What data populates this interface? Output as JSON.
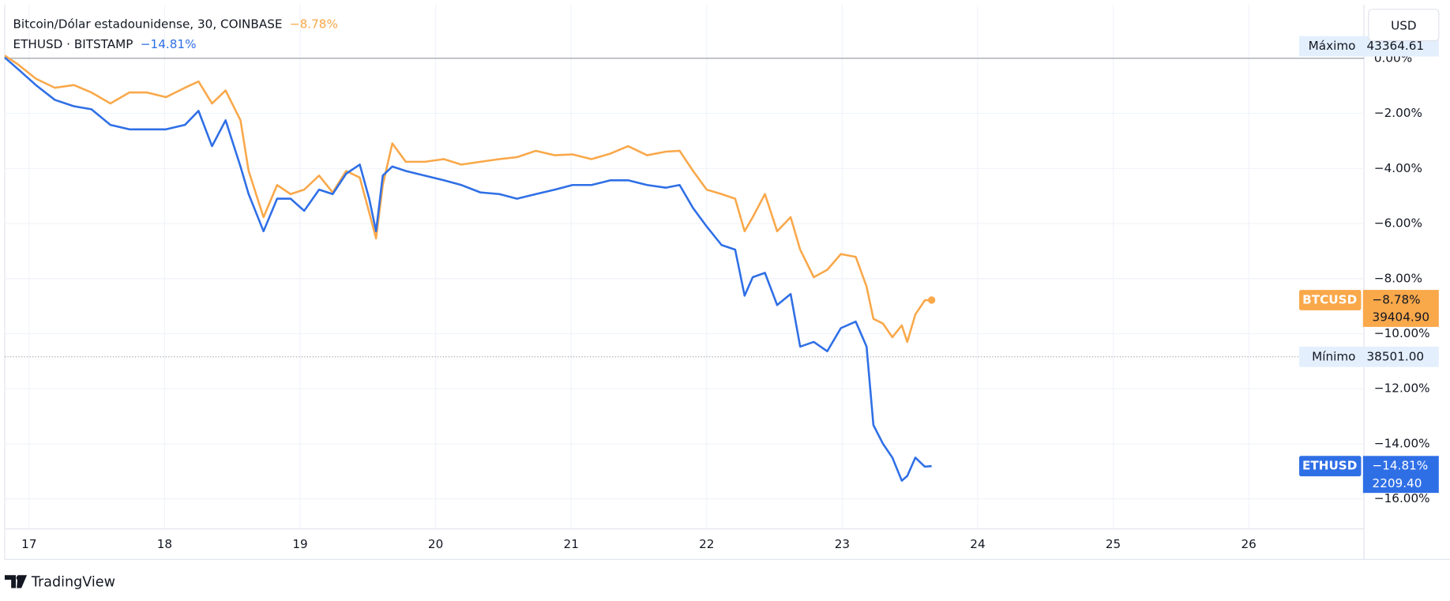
{
  "chart_data": {
    "type": "line",
    "x": [
      16.82,
      16.92,
      17.05,
      17.19,
      17.33,
      17.46,
      17.6,
      17.74,
      17.87,
      18.01,
      18.15,
      18.25,
      18.35,
      18.45,
      18.56,
      18.62,
      18.73,
      18.83,
      18.93,
      19.03,
      19.14,
      19.24,
      19.34,
      19.44,
      19.51,
      19.56,
      19.61,
      19.68,
      19.78,
      19.92,
      20.06,
      20.19,
      20.33,
      20.47,
      20.6,
      20.74,
      20.88,
      21.01,
      21.15,
      21.29,
      21.42,
      21.56,
      21.7,
      21.8,
      21.9,
      22.0,
      22.11,
      22.21,
      22.28,
      22.34,
      22.43,
      22.52,
      22.62,
      22.69,
      22.79,
      22.89,
      22.99,
      23.1,
      23.18,
      23.23,
      23.3,
      23.37,
      23.44,
      23.48,
      23.54,
      23.61,
      23.66
    ],
    "series": [
      {
        "name": "BTCUSD",
        "description": "Bitcoin/Dólar estadounidense, 30, COINBASE",
        "change_label": "−8.78%",
        "price_label": "39404.90",
        "color": "#f9a84a",
        "marker_last": true,
        "values": [
          0.1,
          -0.23,
          -0.74,
          -1.07,
          -0.97,
          -1.24,
          -1.64,
          -1.24,
          -1.24,
          -1.41,
          -1.07,
          -0.84,
          -1.64,
          -1.17,
          -2.25,
          -4.09,
          -5.77,
          -4.6,
          -4.93,
          -4.77,
          -4.26,
          -4.87,
          -4.09,
          -4.33,
          -5.6,
          -6.54,
          -4.6,
          -3.09,
          -3.76,
          -3.76,
          -3.66,
          -3.86,
          -3.76,
          -3.66,
          -3.59,
          -3.36,
          -3.52,
          -3.49,
          -3.66,
          -3.46,
          -3.19,
          -3.52,
          -3.39,
          -3.36,
          -4.09,
          -4.77,
          -4.93,
          -5.1,
          -6.28,
          -5.77,
          -4.93,
          -6.28,
          -5.77,
          -6.95,
          -7.95,
          -7.68,
          -7.11,
          -7.21,
          -8.29,
          -9.46,
          -9.63,
          -10.13,
          -9.7,
          -10.3,
          -9.3,
          -8.79,
          -8.78
        ]
      },
      {
        "name": "ETHUSD",
        "description": "ETHUSD · BITSTAMP",
        "change_label": "−14.81%",
        "price_label": "2209.40",
        "color": "#2f6fe6",
        "marker_last": false,
        "values": [
          0.03,
          -0.4,
          -0.97,
          -1.51,
          -1.74,
          -1.85,
          -2.42,
          -2.58,
          -2.58,
          -2.58,
          -2.42,
          -1.91,
          -3.19,
          -2.25,
          -3.93,
          -4.93,
          -6.28,
          -5.1,
          -5.1,
          -5.54,
          -4.77,
          -4.93,
          -4.19,
          -3.86,
          -5.1,
          -6.28,
          -4.26,
          -3.93,
          -4.09,
          -4.26,
          -4.43,
          -4.6,
          -4.87,
          -4.93,
          -5.1,
          -4.93,
          -4.77,
          -4.6,
          -4.6,
          -4.43,
          -4.43,
          -4.6,
          -4.7,
          -4.6,
          -5.44,
          -6.11,
          -6.78,
          -6.95,
          -8.62,
          -7.95,
          -7.79,
          -8.96,
          -8.56,
          -10.47,
          -10.3,
          -10.64,
          -9.8,
          -9.56,
          -10.47,
          -13.32,
          -13.99,
          -14.5,
          -15.34,
          -15.17,
          -14.5,
          -14.83,
          -14.81
        ]
      }
    ],
    "xlim": [
      16.82,
      26.85
    ],
    "xticks": [
      17,
      18,
      19,
      20,
      21,
      22,
      23,
      24,
      25,
      26
    ],
    "ylim": [
      -17.09,
      1.95
    ],
    "yticks": [
      {
        "value": 0,
        "label": "0.00%"
      },
      {
        "value": -2,
        "label": "−2.00%"
      },
      {
        "value": -4,
        "label": "−4.00%"
      },
      {
        "value": -6,
        "label": "−6.00%"
      },
      {
        "value": -8,
        "label": "−8.00%"
      },
      {
        "value": -10,
        "label": "−10.00%"
      },
      {
        "value": -12,
        "label": "−12.00%"
      },
      {
        "value": -14,
        "label": "−14.00%"
      },
      {
        "value": -16,
        "label": "−16.00%"
      }
    ],
    "grid": true,
    "currency": "USD",
    "hlines": [
      {
        "name": "Máximo",
        "price_label": "43364.61",
        "y": 0,
        "style": "solid"
      },
      {
        "name": "Mínimo",
        "price_label": "38501.00",
        "y": -10.84,
        "style": "dotted"
      }
    ],
    "brand": "TradingView"
  }
}
